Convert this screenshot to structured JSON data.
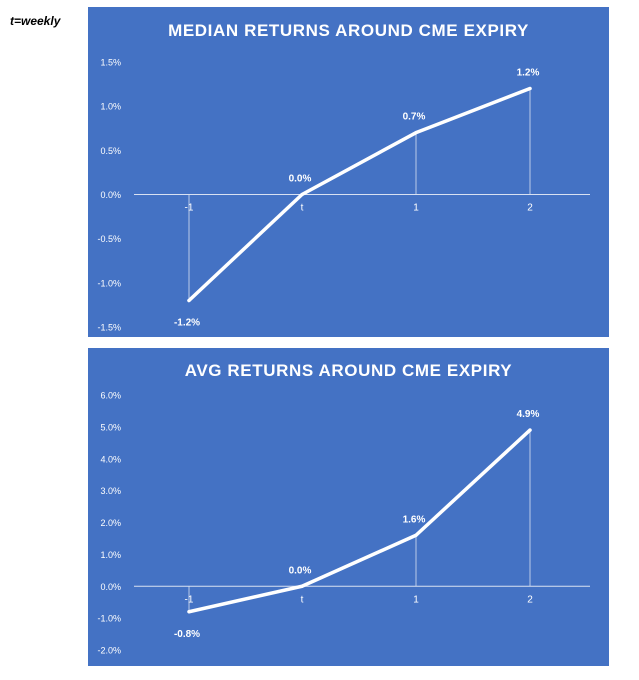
{
  "note": "t=weekly",
  "chart_data": [
    {
      "type": "line",
      "title": "MEDIAN RETURNS AROUND CME EXPIRY",
      "categories": [
        "-1",
        "t",
        "1",
        "2"
      ],
      "values": [
        -1.2,
        0.0,
        0.7,
        1.2
      ],
      "data_labels": [
        "-1.2%",
        "0.0%",
        "0.7%",
        "1.2%"
      ],
      "yticks": [
        "1.5%",
        "1.0%",
        "0.5%",
        "0.0%",
        "-0.5%",
        "-1.0%",
        "-1.5%"
      ],
      "ylim": [
        -1.5,
        1.5
      ],
      "color": "#ffffff",
      "background": "#4472c4"
    },
    {
      "type": "line",
      "title": "AVG RETURNS AROUND CME EXPIRY",
      "categories": [
        "-1",
        "t",
        "1",
        "2"
      ],
      "values": [
        -0.8,
        0.0,
        1.6,
        4.9
      ],
      "data_labels": [
        "-0.8%",
        "0.0%",
        "1.6%",
        "4.9%"
      ],
      "yticks": [
        "6.0%",
        "5.0%",
        "4.0%",
        "3.0%",
        "2.0%",
        "1.0%",
        "0.0%",
        "-1.0%",
        "-2.0%"
      ],
      "ylim": [
        -2.0,
        6.0
      ],
      "color": "#ffffff",
      "background": "#4472c4"
    }
  ]
}
